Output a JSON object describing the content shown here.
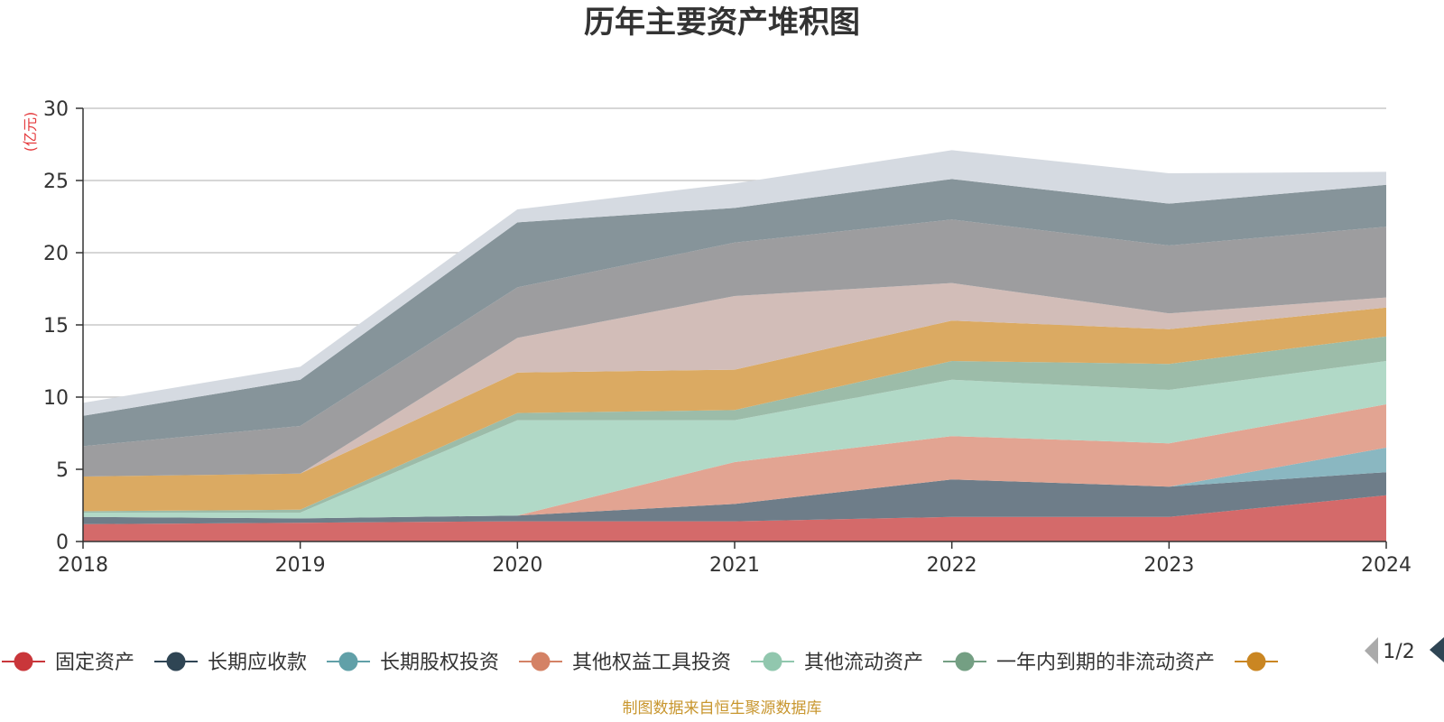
{
  "chart_data": {
    "type": "area",
    "stacked": true,
    "title": "历年主要资产堆积图",
    "unit": "(亿元)",
    "x": [
      "2018",
      "2019",
      "2020",
      "2021",
      "2022",
      "2023",
      "2024"
    ],
    "ylim": [
      0,
      30
    ],
    "yticks": [
      "0",
      "5",
      "10",
      "15",
      "20",
      "25",
      "30"
    ],
    "grid": true,
    "series": [
      {
        "name": "固定资产",
        "color": "#d46a6a",
        "values": [
          1.2,
          1.3,
          1.4,
          1.4,
          1.7,
          1.7,
          3.2
        ]
      },
      {
        "name": "长期应收款",
        "color": "#6e7d89",
        "values": [
          0.5,
          0.3,
          0.4,
          1.2,
          2.6,
          2.1,
          1.6
        ]
      },
      {
        "name": "长期股权投资",
        "color": "#8ab7c1",
        "values": [
          0.0,
          0.0,
          0.0,
          0.0,
          0.0,
          0.0,
          1.7
        ]
      },
      {
        "name": "其他权益工具投资",
        "color": "#e2a492",
        "values": [
          0.0,
          0.0,
          0.0,
          2.9,
          3.0,
          3.0,
          3.0
        ]
      },
      {
        "name": "其他流动资产",
        "color": "#b1d9c7",
        "values": [
          0.3,
          0.4,
          6.6,
          2.9,
          3.9,
          3.7,
          3.0
        ]
      },
      {
        "name": "一年内到期的非流动资产",
        "color": "#9cbca9",
        "values": [
          0.1,
          0.2,
          0.5,
          0.7,
          1.3,
          1.8,
          1.7
        ]
      },
      {
        "name": "",
        "color": "#dbaa62",
        "values": [
          2.4,
          2.5,
          2.8,
          2.8,
          2.8,
          2.4,
          2.0
        ]
      },
      {
        "name": "",
        "color": "#d2bdb8",
        "values": [
          0.0,
          0.0,
          2.4,
          5.1,
          2.6,
          1.1,
          0.7
        ]
      },
      {
        "name": "",
        "color": "#9d9d9f",
        "values": [
          2.1,
          3.3,
          3.5,
          3.7,
          4.4,
          4.7,
          4.9
        ]
      },
      {
        "name": "",
        "color": "#86949a",
        "values": [
          2.1,
          3.2,
          4.5,
          2.4,
          2.8,
          2.9,
          2.9
        ]
      },
      {
        "name": "",
        "color": "#d5dae1",
        "values": [
          0.9,
          0.9,
          0.9,
          1.7,
          2.0,
          2.1,
          0.9
        ]
      }
    ]
  },
  "legend": {
    "items": [
      {
        "label": "固定资产",
        "color": "#c9363a"
      },
      {
        "label": "长期应收款",
        "color": "#2f4554"
      },
      {
        "label": "长期股权投资",
        "color": "#61a0a8"
      },
      {
        "label": "其他权益工具投资",
        "color": "#d48265"
      },
      {
        "label": "其他流动资产",
        "color": "#91c7ae"
      },
      {
        "label": "一年内到期的非流动资产",
        "color": "#749f83"
      },
      {
        "label": "",
        "color": "#ca8622"
      }
    ],
    "page": "1/2",
    "prev_icon": "triangle-left-icon",
    "next_icon": "triangle-right-icon"
  },
  "source_text": "制图数据来自恒生聚源数据库"
}
